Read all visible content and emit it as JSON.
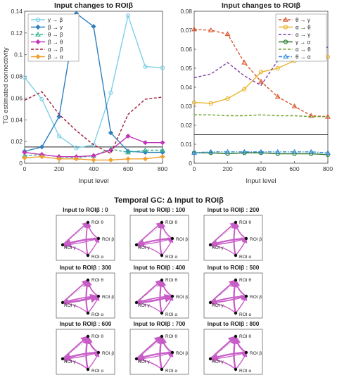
{
  "colors": {
    "gamma_beta": "#7ecfe7",
    "beta_gamma": "#2f7fbf",
    "theta_beta": "#2fb38b",
    "beta_theta": "#c234b8",
    "alpha_beta": "#9c1f3a",
    "beta_alpha": "#f0a030",
    "theta_gamma": "#d9542a",
    "alpha_theta": "#e9b42c",
    "alpha_gamma": "#7b3aa8",
    "gamma_alpha": "#2d7a2d",
    "alpha_theta2": "#6aa12b",
    "theta_alpha": "#2f8ad9",
    "arrow": "#c85bc8",
    "axis": "#444444",
    "threshold": "#222222"
  },
  "section_title": "Temporal GC: Δ Input to ROIβ",
  "chart_data": [
    {
      "type": "line",
      "title": "Input changes to ROIβ",
      "xlabel": "Input level",
      "ylabel": "TG estimated connectivity",
      "xlim": [
        0,
        800
      ],
      "ylim": [
        0,
        0.14
      ],
      "x": [
        0,
        100,
        200,
        300,
        400,
        500,
        600,
        700,
        800
      ],
      "xticks": [
        "0",
        "200",
        "400",
        "600",
        "800"
      ],
      "yticks": [
        "0",
        "0.02",
        "0.04",
        "0.06",
        "0.08",
        "0.1",
        "0.12",
        "0.14"
      ],
      "threshold": 0.015,
      "legend_position": "top-left",
      "series": [
        {
          "name": "γ → β",
          "color_key": "gamma_beta",
          "marker": "circle",
          "dash": "solid",
          "values": [
            0.079,
            0.059,
            0.025,
            0.014,
            0.017,
            0.065,
            0.136,
            0.089,
            0.088
          ]
        },
        {
          "name": "β → γ",
          "color_key": "beta_gamma",
          "marker": "diamond",
          "dash": "solid",
          "values": [
            0.011,
            0.015,
            0.043,
            0.138,
            0.126,
            0.028,
            0.011,
            0.01,
            0.01
          ]
        },
        {
          "name": "θ → β",
          "color_key": "theta_beta",
          "marker": "triangle",
          "dash": "dashed",
          "values": [
            0.007,
            0.008,
            0.006,
            0.005,
            0.007,
            0.013,
            0.01,
            0.012,
            0.012
          ]
        },
        {
          "name": "β → θ",
          "color_key": "beta_theta",
          "marker": "diamond",
          "dash": "solid",
          "values": [
            0.01,
            0.008,
            0.006,
            0.006,
            0.007,
            0.012,
            0.025,
            0.019,
            0.019
          ]
        },
        {
          "name": "α → β",
          "color_key": "alpha_beta",
          "marker": "none",
          "dash": "dashed",
          "values": [
            0.058,
            0.066,
            0.045,
            0.03,
            0.017,
            0.009,
            0.045,
            0.059,
            0.061
          ]
        },
        {
          "name": "β → α",
          "color_key": "beta_alpha",
          "marker": "diamond",
          "dash": "solid",
          "values": [
            0.005,
            0.006,
            0.004,
            0.004,
            0.003,
            0.003,
            0.004,
            0.004,
            0.006
          ]
        }
      ]
    },
    {
      "type": "line",
      "title": "Input changes to ROIβ",
      "xlabel": "Input level",
      "ylabel": "",
      "xlim": [
        0,
        800
      ],
      "ylim": [
        0,
        0.08
      ],
      "x": [
        0,
        100,
        200,
        300,
        400,
        500,
        600,
        700,
        800
      ],
      "xticks": [
        "0",
        "200",
        "400",
        "600",
        "800"
      ],
      "yticks": [
        "0",
        "0.01",
        "0.02",
        "0.03",
        "0.04",
        "0.05",
        "0.06",
        "0.07",
        "0.08"
      ],
      "threshold": 0.015,
      "legend_position": "top-right",
      "series": [
        {
          "name": "θ → γ",
          "color_key": "theta_gamma",
          "marker": "triangle",
          "dash": "dashed",
          "values": [
            0.0705,
            0.07,
            0.068,
            0.053,
            0.043,
            0.035,
            0.03,
            0.025,
            0.0245
          ]
        },
        {
          "name": "α → θ",
          "color_key": "alpha_theta",
          "marker": "circle",
          "dash": "solid",
          "values": [
            0.032,
            0.0315,
            0.034,
            0.039,
            0.048,
            0.05,
            0.054,
            0.055,
            0.056
          ]
        },
        {
          "name": "α → γ",
          "color_key": "alpha_gamma",
          "marker": "none",
          "dash": "dashed",
          "values": [
            0.045,
            0.047,
            0.053,
            0.046,
            0.041,
            0.054,
            0.057,
            0.062,
            0.061
          ]
        },
        {
          "name": "γ → α",
          "color_key": "gamma_alpha",
          "marker": "circle",
          "dash": "solid",
          "values": [
            0.0055,
            0.0055,
            0.005,
            0.0055,
            0.0055,
            0.005,
            0.005,
            0.005,
            0.0045
          ]
        },
        {
          "name": "α → θ",
          "color_key": "alpha_theta2",
          "marker": "none",
          "dash": "dashed",
          "values": [
            0.0255,
            0.0255,
            0.025,
            0.025,
            0.0255,
            0.025,
            0.025,
            0.0245,
            0.0245
          ]
        },
        {
          "name": "θ → α",
          "color_key": "theta_alpha",
          "marker": "triangle",
          "dash": "dashdot",
          "values": [
            0.0055,
            0.006,
            0.006,
            0.006,
            0.006,
            0.006,
            0.006,
            0.006,
            0.0055
          ]
        }
      ]
    }
  ],
  "network_panels": {
    "node_labels": {
      "theta": "ROI θ",
      "beta": "ROI β",
      "gamma": "ROI γ",
      "alpha": "ROI α"
    },
    "panels": [
      {
        "title": "Input to ROIβ : 0",
        "strengths": [
          0.55,
          0.9,
          0.3,
          0.35,
          0.5,
          0.3,
          0.45
        ]
      },
      {
        "title": "Input to ROIβ : 100",
        "strengths": [
          0.6,
          0.8,
          0.35,
          0.35,
          0.5,
          0.3,
          0.5
        ]
      },
      {
        "title": "Input to ROIβ : 200",
        "strengths": [
          0.65,
          0.7,
          0.4,
          0.3,
          0.5,
          0.35,
          0.5
        ]
      },
      {
        "title": "Input to ROIβ : 300",
        "strengths": [
          0.7,
          0.55,
          0.9,
          0.3,
          0.55,
          0.35,
          0.55
        ]
      },
      {
        "title": "Input to ROIβ : 400",
        "strengths": [
          0.7,
          0.5,
          0.85,
          0.3,
          0.6,
          0.35,
          0.6
        ]
      },
      {
        "title": "Input to ROIβ : 500",
        "strengths": [
          0.75,
          0.6,
          0.5,
          0.35,
          0.65,
          0.35,
          0.6
        ]
      },
      {
        "title": "Input to ROIβ : 600",
        "strengths": [
          0.8,
          0.85,
          0.35,
          0.4,
          0.7,
          0.35,
          0.7
        ]
      },
      {
        "title": "Input to ROIβ : 700",
        "strengths": [
          0.8,
          0.8,
          0.35,
          0.4,
          0.75,
          0.35,
          0.75
        ]
      },
      {
        "title": "Input to ROIβ : 800",
        "strengths": [
          0.8,
          0.8,
          0.35,
          0.4,
          0.75,
          0.35,
          0.75
        ]
      }
    ]
  }
}
